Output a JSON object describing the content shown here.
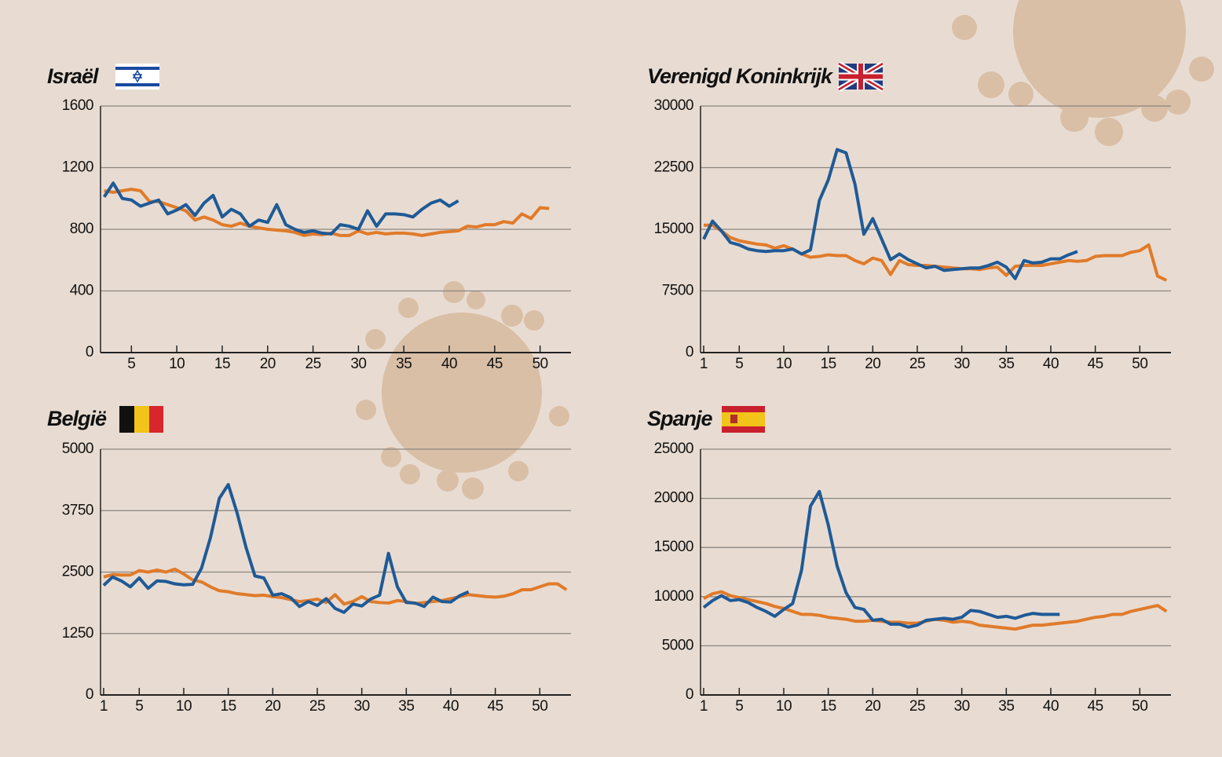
{
  "chart_data": [
    {
      "type": "line",
      "title": "Israël",
      "x": [
        1,
        2,
        3,
        4,
        5,
        6,
        7,
        8,
        9,
        10,
        11,
        12,
        13,
        14,
        15,
        16,
        17,
        18,
        19,
        20,
        21,
        22,
        23,
        24,
        25,
        26,
        27,
        28,
        29,
        30,
        31,
        32,
        33,
        34,
        35,
        36,
        37,
        38,
        39,
        40,
        41,
        42,
        43,
        44,
        45,
        46,
        47,
        48,
        49,
        50,
        51,
        52,
        53
      ],
      "series": [
        {
          "color": "#e07b2a",
          "values": [
            null,
            1050,
            1040,
            1050,
            1060,
            1050,
            980,
            980,
            960,
            940,
            920,
            860,
            880,
            860,
            830,
            820,
            840,
            820,
            810,
            800,
            795,
            790,
            780,
            760,
            770,
            765,
            775,
            760,
            760,
            790,
            770,
            780,
            770,
            775,
            775,
            770,
            760,
            770,
            780,
            785,
            790,
            820,
            815,
            830,
            830,
            850,
            840,
            900,
            870,
            940,
            935,
            null,
            null
          ]
        },
        {
          "color": "#1f5a96",
          "values": [
            null,
            1010,
            1100,
            1000,
            990,
            950,
            970,
            990,
            900,
            925,
            960,
            890,
            970,
            1020,
            880,
            930,
            900,
            820,
            860,
            845,
            960,
            830,
            800,
            780,
            790,
            775,
            770,
            830,
            820,
            800,
            920,
            820,
            900,
            900,
            895,
            880,
            930,
            970,
            990,
            950,
            985,
            null,
            null,
            null,
            null,
            null,
            null,
            null,
            null,
            null,
            null,
            null,
            null
          ]
        }
      ],
      "xlim": [
        1.6,
        53.4
      ],
      "xticks": [
        5,
        10,
        15,
        20,
        25,
        30,
        35,
        40,
        45,
        50
      ],
      "ylim": [
        0,
        1600
      ],
      "yticks": [
        0,
        400,
        800,
        1200,
        1600
      ],
      "grid": true
    },
    {
      "type": "line",
      "title": "Verenigd Koninkrijk",
      "x": [
        1,
        2,
        3,
        4,
        5,
        6,
        7,
        8,
        9,
        10,
        11,
        12,
        13,
        14,
        15,
        16,
        17,
        18,
        19,
        20,
        21,
        22,
        23,
        24,
        25,
        26,
        27,
        28,
        29,
        30,
        31,
        32,
        33,
        34,
        35,
        36,
        37,
        38,
        39,
        40,
        41,
        42,
        43,
        44,
        45,
        46,
        47,
        48,
        49,
        50,
        51,
        52,
        53
      ],
      "series": [
        {
          "color": "#e07b2a",
          "values": [
            15500,
            15500,
            14800,
            14000,
            13600,
            13400,
            13200,
            13100,
            12700,
            13000,
            12600,
            12000,
            11600,
            11700,
            11900,
            11800,
            11800,
            11200,
            10800,
            11500,
            11200,
            9500,
            11200,
            10700,
            10600,
            10600,
            10500,
            10400,
            10300,
            10200,
            10200,
            10100,
            10300,
            10400,
            9400,
            10500,
            10600,
            10600,
            10600,
            10800,
            11000,
            11200,
            11100,
            11200,
            11700,
            11800,
            11800,
            11800,
            12200,
            12400,
            13100,
            9300,
            8800
          ]
        },
        {
          "color": "#1f5a96",
          "values": [
            13800,
            16000,
            14800,
            13400,
            13100,
            12600,
            12400,
            12300,
            12400,
            12400,
            12600,
            12000,
            12500,
            18500,
            21000,
            24700,
            24300,
            20500,
            14400,
            16300,
            13800,
            11300,
            12000,
            11300,
            10800,
            10300,
            10500,
            10000,
            10100,
            10200,
            10300,
            10300,
            10600,
            11000,
            10400,
            9000,
            11200,
            10900,
            11000,
            11400,
            11400,
            11900,
            12300,
            null,
            null,
            null,
            null,
            null,
            null,
            null,
            null,
            null,
            null
          ]
        }
      ],
      "xlim": [
        0.65,
        53.5
      ],
      "xticks": [
        1,
        5,
        10,
        15,
        20,
        25,
        30,
        35,
        40,
        45,
        50
      ],
      "ylim": [
        0,
        30000
      ],
      "yticks": [
        0,
        7500,
        15000,
        22500,
        30000
      ],
      "grid": true
    },
    {
      "type": "line",
      "title": "België",
      "x": [
        1,
        2,
        3,
        4,
        5,
        6,
        7,
        8,
        9,
        10,
        11,
        12,
        13,
        14,
        15,
        16,
        17,
        18,
        19,
        20,
        21,
        22,
        23,
        24,
        25,
        26,
        27,
        28,
        29,
        30,
        31,
        32,
        33,
        34,
        35,
        36,
        37,
        38,
        39,
        40,
        41,
        42,
        43,
        44,
        45,
        46,
        47,
        48,
        49,
        50,
        51,
        52,
        53
      ],
      "series": [
        {
          "color": "#e07b2a",
          "values": [
            2400,
            2450,
            2440,
            2440,
            2530,
            2500,
            2540,
            2500,
            2560,
            2460,
            2340,
            2300,
            2200,
            2120,
            2100,
            2060,
            2040,
            2020,
            2030,
            2000,
            1980,
            1940,
            1900,
            1920,
            1950,
            1880,
            2040,
            1850,
            1900,
            2000,
            1900,
            1880,
            1870,
            1920,
            1900,
            1860,
            1880,
            1900,
            1920,
            1960,
            2000,
            2040,
            2020,
            2000,
            1990,
            2010,
            2060,
            2140,
            2140,
            2200,
            2260,
            2260,
            2140
          ]
        },
        {
          "color": "#1f5a96",
          "values": [
            2230,
            2400,
            2320,
            2200,
            2380,
            2170,
            2320,
            2310,
            2260,
            2240,
            2250,
            2580,
            3200,
            4000,
            4280,
            3700,
            3000,
            2420,
            2380,
            2030,
            2060,
            1980,
            1800,
            1900,
            1820,
            1960,
            1760,
            1680,
            1850,
            1810,
            1950,
            2030,
            2880,
            2200,
            1880,
            1870,
            1800,
            1990,
            1900,
            1890,
            2020,
            2100,
            null,
            null,
            null,
            null,
            null,
            null,
            null,
            null,
            null,
            null,
            null
          ]
        }
      ],
      "xlim": [
        0.65,
        53.5
      ],
      "xticks": [
        1,
        5,
        10,
        15,
        20,
        25,
        30,
        35,
        40,
        45,
        50
      ],
      "ylim": [
        0,
        5000
      ],
      "yticks": [
        0,
        1250,
        2500,
        3750,
        5000
      ],
      "grid": true
    },
    {
      "type": "line",
      "title": "Spanje",
      "x": [
        1,
        2,
        3,
        4,
        5,
        6,
        7,
        8,
        9,
        10,
        11,
        12,
        13,
        14,
        15,
        16,
        17,
        18,
        19,
        20,
        21,
        22,
        23,
        24,
        25,
        26,
        27,
        28,
        29,
        30,
        31,
        32,
        33,
        34,
        35,
        36,
        37,
        38,
        39,
        40,
        41,
        42,
        43,
        44,
        45,
        46,
        47,
        48,
        49,
        50,
        51,
        52,
        53
      ],
      "series": [
        {
          "color": "#e07b2a",
          "values": [
            9800,
            10300,
            10500,
            10100,
            9900,
            9700,
            9500,
            9300,
            9000,
            8800,
            8500,
            8200,
            8200,
            8100,
            7900,
            7800,
            7700,
            7500,
            7500,
            7600,
            7500,
            7400,
            7400,
            7300,
            7300,
            7500,
            7700,
            7600,
            7400,
            7500,
            7400,
            7100,
            7000,
            6900,
            6800,
            6700,
            6900,
            7100,
            7100,
            7200,
            7300,
            7400,
            7500,
            7700,
            7900,
            8000,
            8200,
            8200,
            8500,
            8700,
            8900,
            9100,
            8500
          ]
        },
        {
          "color": "#1f5a96",
          "values": [
            8900,
            9600,
            10100,
            9600,
            9700,
            9400,
            8900,
            8500,
            8000,
            8700,
            9300,
            12700,
            19200,
            20700,
            17300,
            13100,
            10400,
            8900,
            8700,
            7600,
            7700,
            7200,
            7200,
            6900,
            7100,
            7600,
            7700,
            7800,
            7700,
            7900,
            8600,
            8500,
            8200,
            7900,
            8000,
            7800,
            8100,
            8300,
            8200,
            8200,
            8200,
            null,
            null,
            null,
            null,
            null,
            null,
            null,
            null,
            null,
            null,
            null,
            null
          ]
        }
      ],
      "xlim": [
        0.65,
        53.5
      ],
      "xticks": [
        1,
        5,
        10,
        15,
        20,
        25,
        30,
        35,
        40,
        45,
        50
      ],
      "ylim": [
        0,
        25000
      ],
      "yticks": [
        0,
        5000,
        10000,
        15000,
        20000,
        25000
      ],
      "grid": true
    }
  ]
}
